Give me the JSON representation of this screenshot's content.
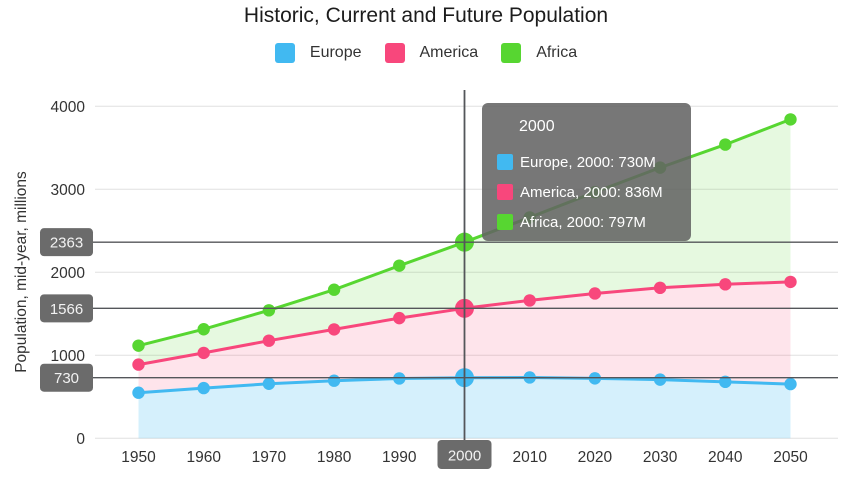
{
  "title": "Historic, Current and Future Population",
  "y_axis_title": "Population, mid-year, millions",
  "legend": {
    "items": [
      "Europe",
      "America",
      "Africa"
    ]
  },
  "chart_data": {
    "type": "area",
    "stacked": true,
    "title": "Historic, Current and Future Population",
    "xlabel": "",
    "ylabel": "Population, mid-year, millions",
    "x": [
      1950,
      1960,
      1970,
      1980,
      1990,
      2000,
      2010,
      2020,
      2030,
      2040,
      2050
    ],
    "series": [
      {
        "name": "Europe",
        "color": "#41b9f1",
        "fill": "rgba(65,185,241,0.22)",
        "values": [
          549,
          605,
          657,
          694,
          721,
          730,
          733,
          722,
          707,
          680,
          653
        ]
      },
      {
        "name": "America",
        "color": "#f8477c",
        "fill": "rgba(248,71,124,0.15)",
        "values": [
          339,
          424,
          519,
          618,
          727,
          836,
          928,
          1023,
          1106,
          1175,
          1231
        ]
      },
      {
        "name": "Africa",
        "color": "#57d631",
        "fill": "rgba(87,214,49,0.15)",
        "values": [
          228,
          285,
          366,
          478,
          632,
          797,
          1000,
          1220,
          1448,
          1684,
          1958
        ]
      }
    ],
    "ylim": [
      0,
      4000
    ],
    "yticks": [
      0,
      1000,
      2000,
      3000,
      4000
    ],
    "grid": "horizontal",
    "legend_position": "top"
  },
  "cursor": {
    "year": 2000,
    "x_badge": "2000",
    "y_badges": [
      {
        "value": 730,
        "label": "730"
      },
      {
        "value": 1566,
        "label": "1566"
      },
      {
        "value": 2363,
        "label": "2363"
      }
    ]
  },
  "tooltip": {
    "header": "2000",
    "rows": [
      {
        "series": "Europe",
        "label": "Europe, 2000: 730M"
      },
      {
        "series": "America",
        "label": "America, 2000: 836M"
      },
      {
        "series": "Africa",
        "label": "Africa, 2000: 797M"
      }
    ]
  },
  "colors": {
    "badge_bg": "#6b6b6b",
    "badge_text": "#f2f2f2",
    "crosshair": "#54565a",
    "gridline": "#e0e0e0",
    "axis_text": "#333333",
    "tooltip_bg": "rgba(99,99,99,0.87)"
  }
}
